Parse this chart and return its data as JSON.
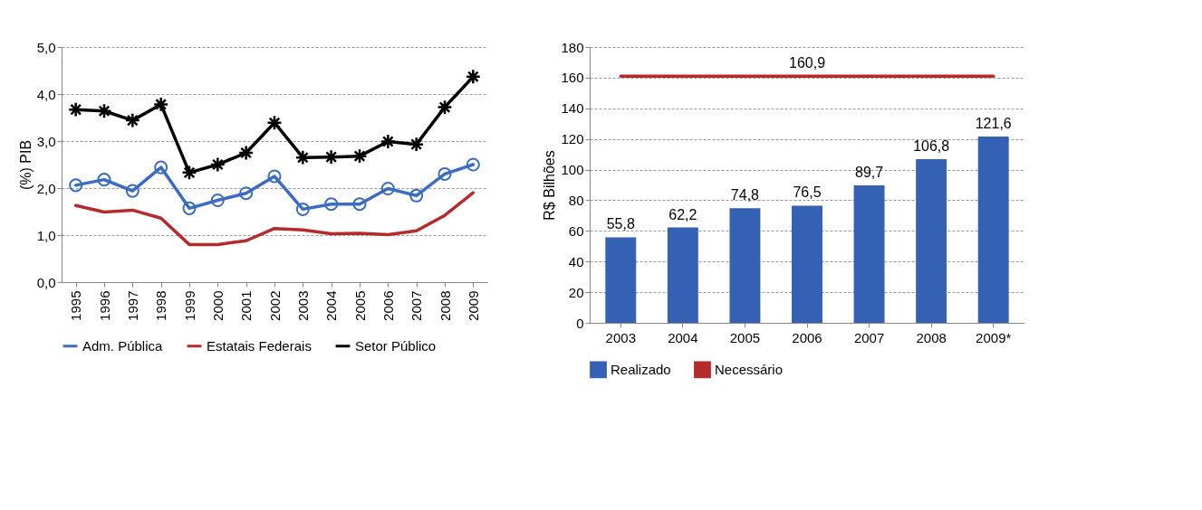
{
  "chart_data": [
    {
      "type": "line",
      "ylabel": "(%) PIB",
      "categories": [
        "1995",
        "1996",
        "1997",
        "1998",
        "1999",
        "2000",
        "2001",
        "2002",
        "2003",
        "2004",
        "2005",
        "2006",
        "2007",
        "2008",
        "2009"
      ],
      "ylim": [
        0,
        5
      ],
      "yticks": [
        {
          "value": 0,
          "label": "0,0"
        },
        {
          "value": 1,
          "label": "1,0"
        },
        {
          "value": 2,
          "label": "2,0"
        },
        {
          "value": 3,
          "label": "3,0"
        },
        {
          "value": 4,
          "label": "4,0"
        },
        {
          "value": 5,
          "label": "5,0"
        }
      ],
      "grid": "y",
      "legend": "bottom",
      "series": [
        {
          "name": "Adm. Pública",
          "color": "#3b6cc0",
          "marker": "circle",
          "values": [
            2.06,
            2.18,
            1.94,
            2.44,
            1.57,
            1.74,
            1.89,
            2.25,
            1.55,
            1.66,
            1.66,
            1.99,
            1.84,
            2.3,
            2.5
          ]
        },
        {
          "name": "Estatais Federais",
          "color": "#b52a2a",
          "values": [
            1.63,
            1.49,
            1.53,
            1.36,
            0.8,
            0.8,
            0.88,
            1.14,
            1.11,
            1.03,
            1.04,
            1.01,
            1.09,
            1.42,
            1.9
          ]
        },
        {
          "name": "Setor Público",
          "color": "#000000",
          "marker": "cross",
          "values": [
            3.67,
            3.64,
            3.44,
            3.78,
            2.33,
            2.5,
            2.75,
            3.39,
            2.65,
            2.66,
            2.68,
            2.99,
            2.93,
            3.72,
            4.37
          ]
        }
      ]
    },
    {
      "type": "bar",
      "ylabel": "R$ Bilhões",
      "categories": [
        "2003",
        "2004",
        "2005",
        "2006",
        "2007",
        "2008",
        "2009*"
      ],
      "ylim": [
        0,
        180
      ],
      "yticks": [
        0,
        20,
        40,
        60,
        80,
        100,
        120,
        140,
        160,
        180
      ],
      "grid": "y",
      "legend": "bottom",
      "series": [
        {
          "name": "Realizado",
          "color": "#3561b5",
          "values": [
            55.8,
            62.2,
            74.8,
            76.5,
            89.7,
            106.8,
            121.6
          ],
          "value_labels": [
            "55,8",
            "62,2",
            "74,8",
            "76,5",
            "89,7",
            "106,8",
            "121,6"
          ]
        },
        {
          "name": "Necessário",
          "type": "line",
          "color": "#b52a2a",
          "values": [
            160.9,
            160.9,
            160.9,
            160.9,
            160.9,
            160.9,
            160.9
          ],
          "value_labels": [
            null,
            null,
            null,
            "160,9",
            null,
            null,
            null
          ]
        }
      ]
    }
  ]
}
